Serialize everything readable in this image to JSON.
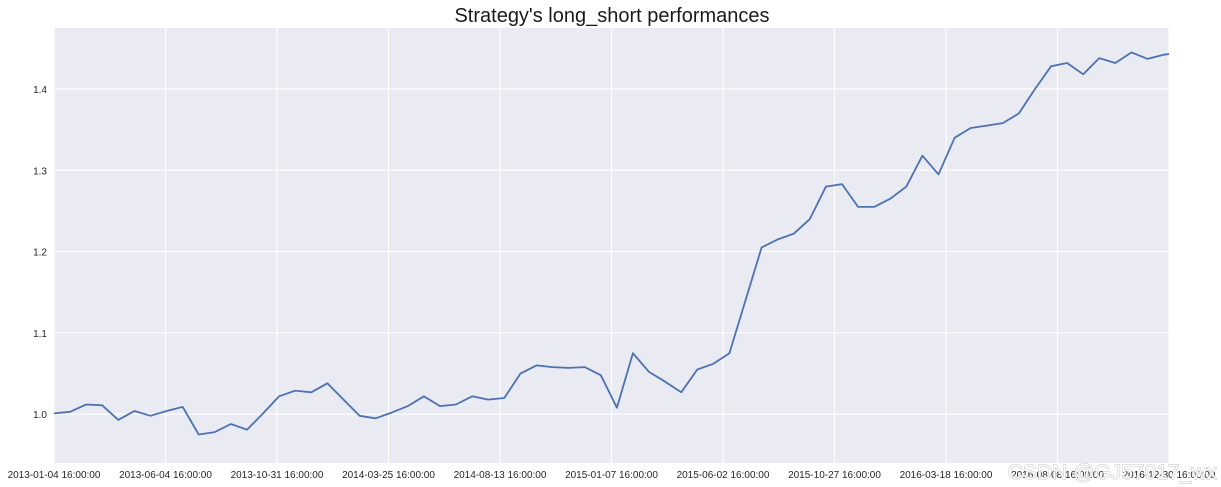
{
  "watermark": "CSDN @GJ57017_wx",
  "chart_data": {
    "type": "line",
    "title": "Strategy's long_short performances",
    "xlabel": "",
    "ylabel": "",
    "ylim": [
      0.94,
      1.475
    ],
    "grid": true,
    "legend": "none",
    "colors": {
      "background": "#eaeaf2",
      "grid": "#ffffff",
      "line": "#4c72b0"
    },
    "x_tick_labels": [
      "2013-01-04 16:00:00",
      "2013-06-04 16:00:00",
      "2013-10-31 16:00:00",
      "2014-03-25 16:00:00",
      "2014-08-13 16:00:00",
      "2015-01-07 16:00:00",
      "2015-06-02 16:00:00",
      "2015-10-27 16:00:00",
      "2016-03-18 16:00:00",
      "2016-08-08 16:00:00",
      "2016-12-30 16:00:00"
    ],
    "y_ticks": [
      1.0,
      1.1,
      1.2,
      1.3,
      1.4
    ],
    "y_tick_labels": [
      "1.0",
      "1.1",
      "1.2",
      "1.3",
      "1.4"
    ],
    "series": [
      {
        "x": [
          "2013-01-04",
          "2013-01-25",
          "2013-02-15",
          "2013-03-08",
          "2013-03-29",
          "2013-04-19",
          "2013-05-10",
          "2013-05-31",
          "2013-06-21",
          "2013-07-12",
          "2013-08-02",
          "2013-08-23",
          "2013-09-13",
          "2013-10-04",
          "2013-10-25",
          "2013-11-15",
          "2013-12-06",
          "2013-12-27",
          "2014-01-17",
          "2014-02-07",
          "2014-02-28",
          "2014-03-21",
          "2014-04-11",
          "2014-05-02",
          "2014-05-23",
          "2014-06-13",
          "2014-07-04",
          "2014-07-25",
          "2014-08-15",
          "2014-09-05",
          "2014-09-26",
          "2014-10-17",
          "2014-11-07",
          "2014-11-28",
          "2014-12-19",
          "2015-01-09",
          "2015-01-30",
          "2015-02-20",
          "2015-03-13",
          "2015-04-03",
          "2015-04-24",
          "2015-05-15",
          "2015-06-05",
          "2015-06-26",
          "2015-07-17",
          "2015-08-07",
          "2015-08-28",
          "2015-09-18",
          "2015-10-09",
          "2015-10-30",
          "2015-11-20",
          "2015-12-11",
          "2016-01-01",
          "2016-01-22",
          "2016-02-12",
          "2016-03-04",
          "2016-03-25",
          "2016-04-15",
          "2016-05-06",
          "2016-05-27",
          "2016-06-17",
          "2016-07-08",
          "2016-07-29",
          "2016-08-19",
          "2016-09-09",
          "2016-09-30",
          "2016-10-21",
          "2016-11-11",
          "2016-12-02",
          "2016-12-23",
          "2016-12-30"
        ],
        "y": [
          1.001,
          1.003,
          1.012,
          1.011,
          0.993,
          1.004,
          0.998,
          1.004,
          1.009,
          0.975,
          0.978,
          0.988,
          0.981,
          1.001,
          1.022,
          1.029,
          1.027,
          1.038,
          1.018,
          0.998,
          0.995,
          1.002,
          1.01,
          1.022,
          1.01,
          1.012,
          1.022,
          1.018,
          1.02,
          1.05,
          1.06,
          1.058,
          1.057,
          1.058,
          1.048,
          1.008,
          1.075,
          1.052,
          1.04,
          1.027,
          1.055,
          1.062,
          1.075,
          1.14,
          1.205,
          1.215,
          1.222,
          1.24,
          1.28,
          1.283,
          1.255,
          1.255,
          1.265,
          1.28,
          1.318,
          1.295,
          1.34,
          1.352,
          1.355,
          1.358,
          1.37,
          1.4,
          1.428,
          1.432,
          1.418,
          1.438,
          1.432,
          1.445,
          1.437,
          1.442,
          1.443
        ]
      }
    ],
    "x_range": [
      "2013-01-04",
      "2016-12-30"
    ]
  }
}
